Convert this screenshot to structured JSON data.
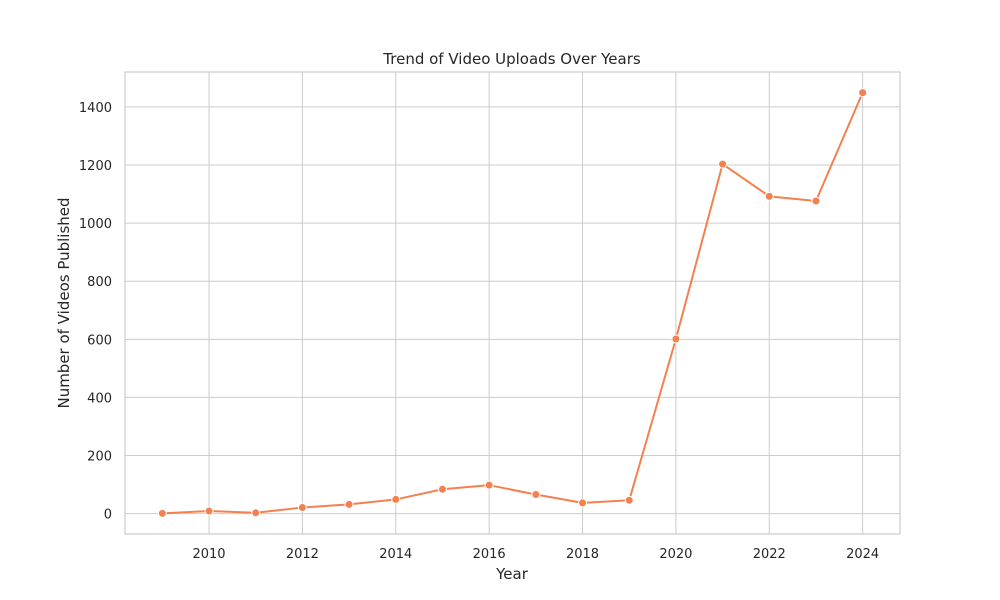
{
  "chart_data": {
    "type": "line",
    "title": "Trend of Video Uploads Over Years",
    "xlabel": "Year",
    "ylabel": "Number of Videos Published",
    "x": [
      2009,
      2010,
      2011,
      2012,
      2013,
      2014,
      2015,
      2016,
      2017,
      2018,
      2019,
      2020,
      2021,
      2022,
      2023,
      2024
    ],
    "series": [
      {
        "values": [
          1,
          9,
          3,
          21,
          32,
          49,
          84,
          98,
          66,
          37,
          46,
          601,
          1203,
          1092,
          1076,
          1449
        ],
        "color": "#f4804f"
      }
    ],
    "xlim": [
      2008.2,
      2024.8
    ],
    "ylim": [
      -70,
      1520
    ],
    "xticks": [
      2010,
      2012,
      2014,
      2016,
      2018,
      2020,
      2022,
      2024
    ],
    "yticks": [
      0,
      200,
      400,
      600,
      800,
      1000,
      1200,
      1400
    ],
    "grid": true,
    "legend": "none"
  }
}
